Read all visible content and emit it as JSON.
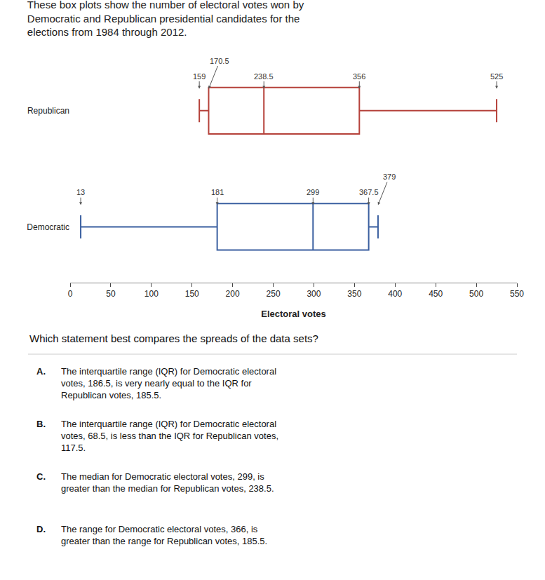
{
  "chart_data": {
    "type": "box",
    "title": "These box plots show the number of electoral votes won by\nDemocratic and Republican presidential candidates for the\nelections from 1984 through 2012.",
    "orientation": "horizontal",
    "xlabel": "Electoral votes",
    "xlim": [
      0,
      550
    ],
    "xticks": [
      0,
      50,
      100,
      150,
      200,
      250,
      300,
      350,
      400,
      450,
      500,
      550
    ],
    "grid": false,
    "data_labels": true,
    "series": [
      {
        "name": "Republican",
        "color": "#b5413a",
        "min": 159,
        "q1": 170.5,
        "median": 238.5,
        "q3": 356,
        "max": 525
      },
      {
        "name": "Democratic",
        "color": "#3a5fa0",
        "min": 13,
        "q1": 181,
        "median": 299,
        "q3": 367.5,
        "max": 379
      }
    ],
    "question": "Which statement best compares the spreads of the data sets?",
    "answers": [
      {
        "letter": "A.",
        "text": "The interquartile range (IQR) for Democratic electoral\nvotes, 186.5, is very nearly equal to the IQR for\nRepublican votes, 185.5."
      },
      {
        "letter": "B.",
        "text": "The interquartile range (IQR) for Democratic electoral\nvotes, 68.5, is less than the IQR for Republican votes,\n117.5."
      },
      {
        "letter": "C.",
        "text": "The median for Democratic electoral votes, 299, is\ngreater than the median for Republican votes, 238.5."
      },
      {
        "letter": "D.",
        "text": "The range for Democratic electoral votes, 366, is\ngreater than the range for Republican votes, 185.5."
      }
    ]
  }
}
